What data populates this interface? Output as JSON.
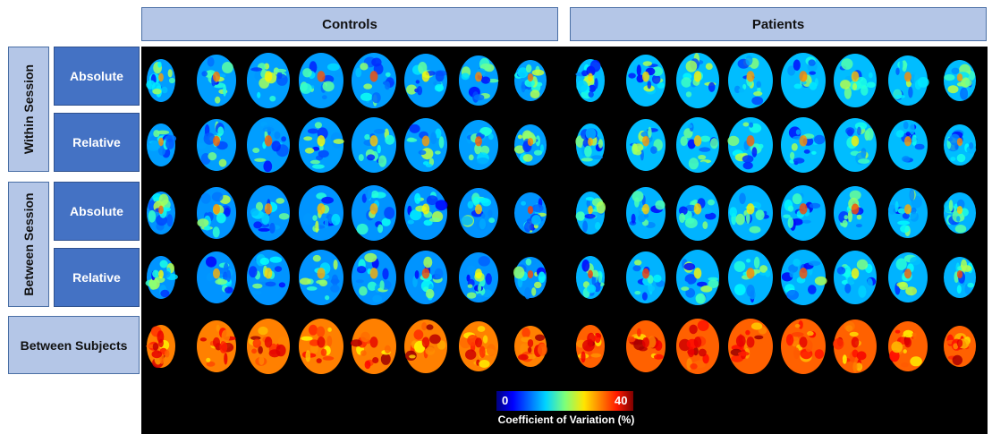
{
  "columns": {
    "controls": "Controls",
    "patients": "Patients"
  },
  "groups": {
    "within": "Within Session",
    "between": "Between Session"
  },
  "rows": {
    "within_absolute": "Absolute",
    "within_relative": "Relative",
    "between_absolute": "Absolute",
    "between_relative": "Relative",
    "between_subjects": "Between Subjects"
  },
  "colorbar": {
    "min": "0",
    "max": "40",
    "title": "Coefficient of Variation (%)"
  },
  "colors": {
    "header_fill": "#b4c6e7",
    "row_label_fill": "#4472c4",
    "panel_bg": "#000000"
  },
  "colormap": "jet"
}
